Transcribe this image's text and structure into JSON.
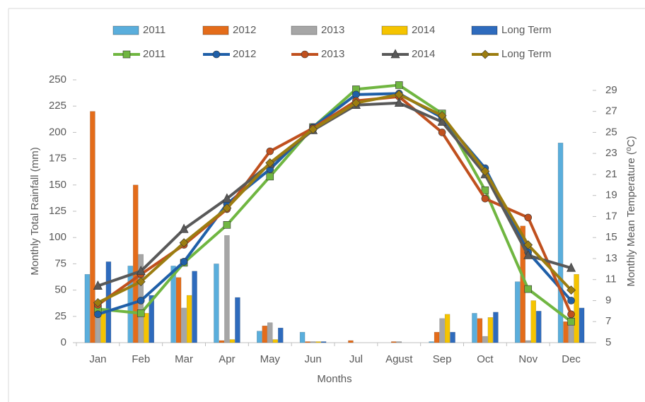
{
  "chart_data": {
    "type": "combo",
    "x_label": "Months",
    "y_label": "Monthly Total Rainfall (mm)",
    "y2_label": "Monthly Mean Temperature (⁰C)",
    "categories": [
      "Jan",
      "Feb",
      "Mar",
      "Apr",
      "May",
      "Jun",
      "Jul",
      "Agust",
      "Sep",
      "Oct",
      "Nov",
      "Dec"
    ],
    "ylim": [
      0,
      250
    ],
    "yticks": [
      0,
      25,
      50,
      75,
      100,
      125,
      150,
      175,
      200,
      225,
      250
    ],
    "y2lim": [
      5,
      30
    ],
    "y2ticks": [
      5,
      7,
      9,
      11,
      13,
      15,
      17,
      19,
      21,
      23,
      25,
      27,
      29
    ],
    "legend": "top",
    "series": [
      {
        "name": "2011",
        "type": "bar",
        "color": "#5aaedc",
        "values": [
          65,
          73,
          73,
          75,
          11,
          10,
          0,
          0,
          1,
          28,
          58,
          190
        ]
      },
      {
        "name": "2012",
        "type": "bar",
        "color": "#e46c1a",
        "values": [
          220,
          150,
          62,
          2,
          16,
          1,
          2,
          1,
          10,
          23,
          111,
          20
        ]
      },
      {
        "name": "2013",
        "type": "bar",
        "color": "#a6a6a6",
        "values": [
          30,
          84,
          33,
          102,
          19,
          1,
          0,
          1,
          23,
          6,
          2,
          25
        ]
      },
      {
        "name": "2014",
        "type": "bar",
        "color": "#f5c400",
        "values": [
          30,
          28,
          45,
          3,
          3,
          1,
          0,
          0,
          27,
          24,
          40,
          65
        ]
      },
      {
        "name": "Long Term",
        "type": "bar",
        "color": "#2e6bbd",
        "values": [
          77,
          45,
          68,
          43,
          14,
          1,
          0,
          0,
          10,
          29,
          30,
          33
        ]
      },
      {
        "name": "2011",
        "type": "line",
        "axis": "y2",
        "marker": "square",
        "color": "#70b641",
        "values": [
          8.2,
          7.8,
          12.6,
          16.2,
          20.8,
          25.5,
          29.1,
          29.5,
          26.8,
          19.5,
          10.1,
          7.0
        ]
      },
      {
        "name": "2012",
        "type": "line",
        "axis": "y2",
        "marker": "circle",
        "color": "#1f5fa8",
        "values": [
          7.7,
          9.0,
          12.7,
          18.2,
          21.5,
          25.5,
          28.6,
          28.7,
          26.4,
          21.6,
          13.6,
          9.0
        ]
      },
      {
        "name": "2013",
        "type": "line",
        "axis": "y2",
        "marker": "circle",
        "color": "#c0501e",
        "values": [
          8.6,
          11.5,
          14.3,
          17.7,
          23.2,
          25.4,
          28.0,
          28.4,
          25.0,
          18.7,
          16.9,
          7.7
        ]
      },
      {
        "name": "2014",
        "type": "line",
        "axis": "y2",
        "marker": "triangle",
        "color": "#595959",
        "values": [
          10.4,
          11.8,
          15.8,
          18.7,
          22.0,
          25.2,
          27.6,
          27.8,
          26.0,
          21.0,
          13.3,
          12.1
        ]
      },
      {
        "name": "Long Term",
        "type": "line",
        "axis": "y2",
        "marker": "diamond",
        "color": "#9c7d10",
        "values": [
          8.8,
          10.8,
          14.5,
          17.8,
          22.1,
          25.3,
          27.8,
          28.6,
          26.6,
          21.3,
          14.3,
          10.0
        ]
      }
    ]
  }
}
